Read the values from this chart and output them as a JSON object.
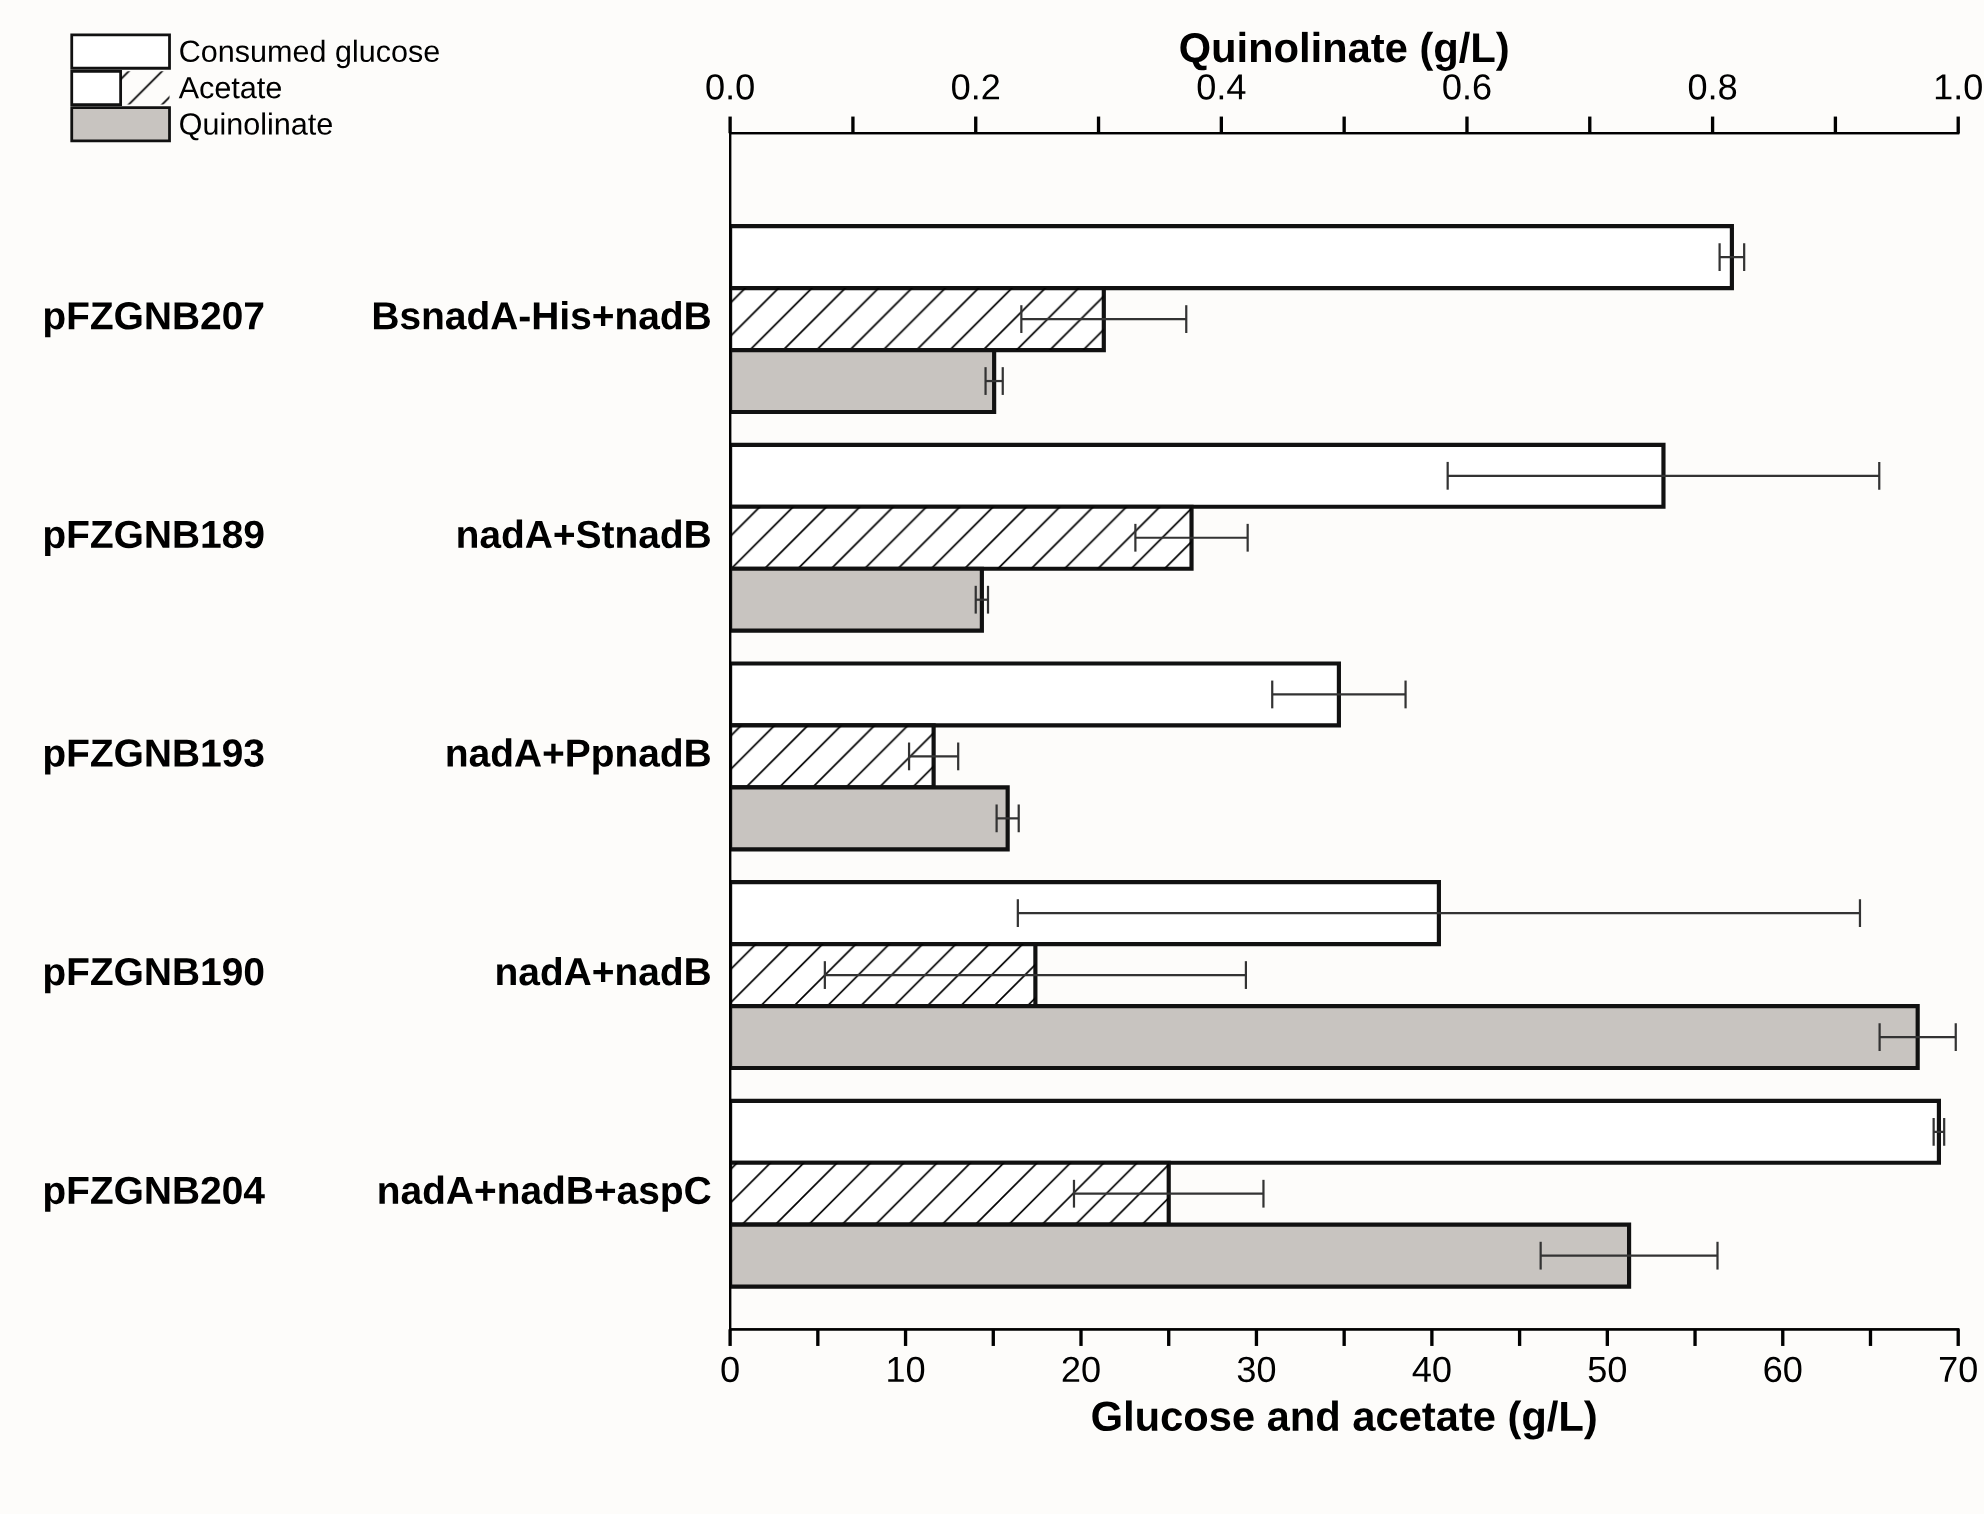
{
  "chart_data": {
    "type": "bar",
    "orientation": "horizontal",
    "xlabel": "Glucose and acetate (g/L)",
    "x2label": "Quinolinate (g/L)",
    "categories": [
      "pFZGNB207 BsnadA-His+nadB",
      "pFZGNB189 nadA+StnadB",
      "pFZGNB193 nadA+PpnadB",
      "pFZGNB190 nadA+nadB",
      "pFZGNB204 nadA+nadB+aspC"
    ],
    "series": [
      {
        "name": "Consumed glucose",
        "color": "#ffffff",
        "values": [
          57.1,
          53.2,
          34.7,
          40.4,
          68.9
        ],
        "errors": [
          0.7,
          12.3,
          3.8,
          24.0,
          0.3
        ]
      },
      {
        "name": "Acetate",
        "color": "#ffffff",
        "values": [
          21.3,
          26.3,
          11.6,
          17.4,
          25.0
        ],
        "errors": [
          4.7,
          3.2,
          1.4,
          12.0,
          5.4
        ]
      },
      {
        "name": "Quinolinate",
        "color": "#c8c4c0",
        "axis": "x2",
        "values": [
          0.215,
          0.205,
          0.226,
          0.967,
          0.732
        ],
        "errors": [
          0.007,
          0.005,
          0.009,
          0.031,
          0.072
        ]
      }
    ],
    "xlim": [
      0,
      70
    ],
    "xticks": [
      0,
      {
        "value": 5,
        "label": null
      },
      10,
      {
        "value": 15,
        "label": null
      },
      20,
      {
        "value": 25,
        "label": null
      },
      30,
      {
        "value": 35,
        "label": null
      },
      40,
      {
        "value": 45,
        "label": null
      },
      50,
      {
        "value": 55,
        "label": null
      },
      60,
      {
        "value": 65,
        "label": null
      },
      70
    ],
    "x2lim": [
      0,
      1
    ],
    "x2ticks": [
      {
        "value": 0,
        "label": "0.0"
      },
      {
        "value": 0.1,
        "label": null
      },
      0.2,
      {
        "value": 0.3,
        "label": null
      },
      0.4,
      {
        "value": 0.5,
        "label": null
      },
      0.6,
      {
        "value": 0.7,
        "label": null
      },
      0.8,
      {
        "value": 0.9,
        "label": null
      },
      {
        "value": 1,
        "label": "1.0"
      }
    ],
    "grid": false,
    "legend": "top left"
  }
}
